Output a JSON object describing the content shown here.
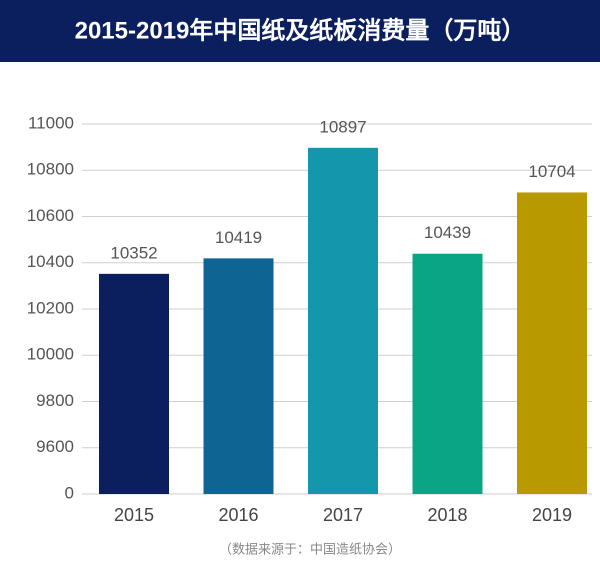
{
  "chart_data": {
    "type": "bar",
    "title": "2015-2019年中国纸及纸板消费量（万吨）",
    "source": "（数据来源于：中国造纸协会）",
    "categories": [
      "2015",
      "2016",
      "2017",
      "2018",
      "2019"
    ],
    "values": [
      10352,
      10419,
      10897,
      10439,
      10704
    ],
    "colors": [
      "#0b1f5e",
      "#0e6593",
      "#1497ad",
      "#0aa584",
      "#b89a00"
    ],
    "ylim": [
      0,
      11000
    ],
    "y_break": [
      0,
      9400
    ],
    "yticks": [
      0,
      9600,
      9800,
      10000,
      10200,
      10400,
      10600,
      10800,
      11000
    ],
    "grid": true
  }
}
